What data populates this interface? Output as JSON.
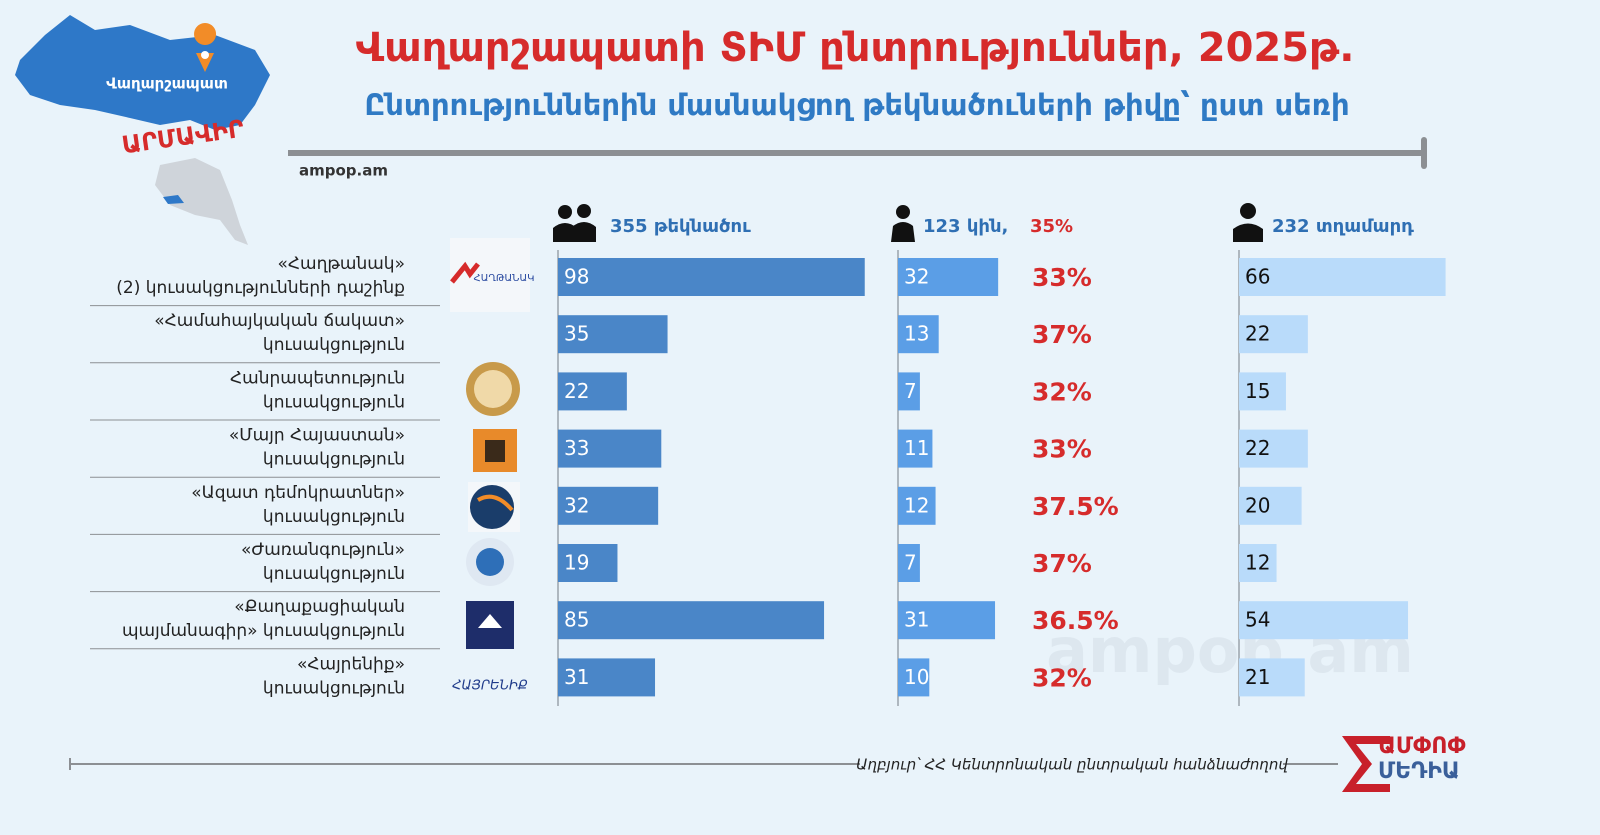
{
  "chart_data": {
    "type": "bar",
    "title": "Վաղարշապատի ՏԻՄ ընտրություններ, 2025թ.",
    "subtitle": "Ընտրություններին մասնակցող թեկնածուների թիվը՝ ըստ սեռի",
    "source": "ampop.am",
    "note": "Աղբյուր՝ ՀՀ Կենտրոնական ընտրական հանձնաժողով",
    "map_labels": [
      "Վաղարշապատ",
      "ԱՐՄԱՎԻՐ"
    ],
    "brand": [
      "ԱՄՓՈՓ",
      "ՄԵԴԻԱ"
    ],
    "watermark": "ampop.am",
    "categories": [
      [
        "«Հաղթանակ»",
        "(2) կուսակցությունների դաշինք"
      ],
      [
        "«Համահայկական ճակատ»",
        "կուսակցություն"
      ],
      [
        "Հանրապետություն",
        "կուսակցություն"
      ],
      [
        "«Մայր Հայաստան»",
        "կուսակցություն"
      ],
      [
        "«Ազատ դեմոկրատներ»",
        "կուսակցություն"
      ],
      [
        "«Ժառանգություն»",
        "կուսակցություն"
      ],
      [
        "«Քաղաքացիական",
        "պայմանագիր» կուսակցություն"
      ],
      [
        "«Հայրենիք»",
        "կուսակցություն"
      ]
    ],
    "series": [
      {
        "name": "355 թեկնածու",
        "color": "#4a86c8",
        "values": [
          98,
          35,
          22,
          33,
          32,
          19,
          85,
          31
        ]
      },
      {
        "name": "123 կին,",
        "color": "#5b9ee6",
        "values": [
          32,
          13,
          7,
          11,
          12,
          7,
          31,
          10
        ]
      },
      {
        "name": "232 տղամարդ",
        "color": "#b9dbfa",
        "values": [
          66,
          22,
          15,
          22,
          20,
          12,
          54,
          21
        ]
      }
    ],
    "women_share_total": "35%",
    "women_share": {
      "values": [
        33,
        37,
        32,
        33,
        37.5,
        37,
        36.5,
        32
      ],
      "value_labels": [
        "33%",
        "37%",
        "32%",
        "33%",
        "37.5%",
        "37%",
        "36.5%",
        "32%"
      ]
    }
  }
}
